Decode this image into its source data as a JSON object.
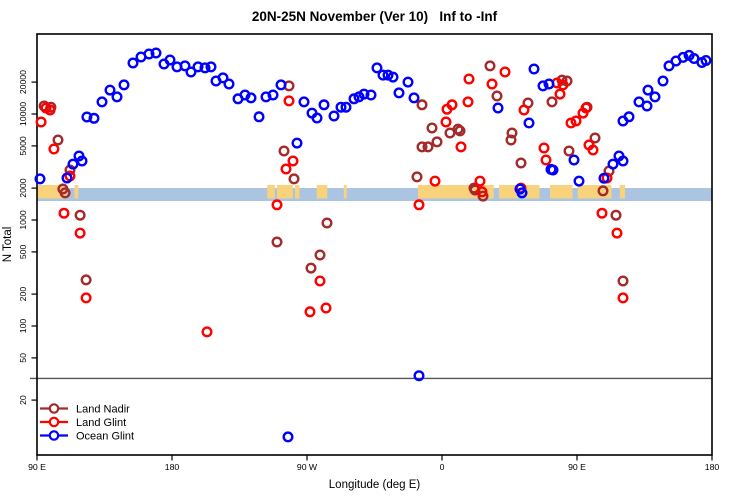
{
  "chart_data": {
    "type": "scatter",
    "title": "20N-25N November (Ver 10)   Inf to -Inf",
    "xlabel": "Longitude (deg E)",
    "ylabel": "N Total",
    "x_axis": {
      "domain_deg": [
        90,
        540
      ],
      "ticks": [
        {
          "deg": 90,
          "label": "90 E"
        },
        {
          "deg": 180,
          "label": "180"
        },
        {
          "deg": 270,
          "label": "90 W"
        },
        {
          "deg": 360,
          "label": "0"
        },
        {
          "deg": 450,
          "label": "90 E"
        },
        {
          "deg": 540,
          "label": "180"
        }
      ]
    },
    "y_axis": {
      "scale": "log",
      "tick_values": [
        20000,
        10000,
        5000,
        2000,
        1000,
        500,
        200,
        100,
        50,
        20
      ]
    },
    "reference_line_value": 32,
    "map_band": {
      "center_value": 2000,
      "ocean_color": "#ABC4E2",
      "land_color": "#F9D27C",
      "land_segments_deg": [
        [
          90,
          110
        ],
        [
          115,
          117.5
        ],
        [
          243.5,
          248.5
        ],
        [
          250,
          260.5
        ],
        [
          262,
          265
        ],
        [
          276.5,
          283.5
        ],
        [
          294.5,
          296.5
        ],
        [
          344,
          394.5
        ],
        [
          398,
          411
        ],
        [
          415,
          425
        ],
        [
          432,
          447
        ],
        [
          450.5,
          473
        ],
        [
          478.5,
          482
        ]
      ]
    },
    "legend_position": "bottom-left",
    "series": [
      {
        "name": "Land Nadir",
        "color": "#A42A2A",
        "points": [
          [
            94.7,
            11900
          ],
          [
            99.3,
            11600
          ],
          [
            104,
            5690
          ],
          [
            112,
            2960
          ],
          [
            107.3,
            1960
          ],
          [
            108.7,
            1800
          ],
          [
            118.7,
            1110
          ],
          [
            122.7,
            272
          ],
          [
            254.7,
            4480
          ],
          [
            258,
            18400
          ],
          [
            261.3,
            2440
          ],
          [
            250,
            620
          ],
          [
            278.7,
            468
          ],
          [
            272.7,
            352
          ],
          [
            283.3,
            937
          ],
          [
            343.3,
            2550
          ],
          [
            346.7,
            12200
          ],
          [
            346.7,
            4890
          ],
          [
            350.7,
            4890
          ],
          [
            353.3,
            7380
          ],
          [
            356.7,
            5450
          ],
          [
            365.3,
            6620
          ],
          [
            370.7,
            7210
          ],
          [
            372,
            6920
          ],
          [
            381.3,
            2000
          ],
          [
            382,
            1920
          ],
          [
            387.3,
            1680
          ],
          [
            392,
            28400
          ],
          [
            396.7,
            14800
          ],
          [
            406,
            5690
          ],
          [
            406.7,
            6620
          ],
          [
            412.7,
            3450
          ],
          [
            417.3,
            12700
          ],
          [
            433.3,
            13000
          ],
          [
            440,
            20900
          ],
          [
            443.3,
            20500
          ],
          [
            444.7,
            4480
          ],
          [
            456.7,
            11600
          ],
          [
            462,
            5940
          ],
          [
            467.3,
            1880
          ],
          [
            471.3,
            2900
          ],
          [
            476,
            1110
          ],
          [
            480.7,
            266
          ]
        ]
      },
      {
        "name": "Land Glint",
        "color": "#FF0000",
        "points": [
          [
            92.7,
            8410
          ],
          [
            96,
            11400
          ],
          [
            98.7,
            10900
          ],
          [
            101.3,
            4680
          ],
          [
            108,
            1160
          ],
          [
            112,
            2600
          ],
          [
            118.7,
            753
          ],
          [
            122.7,
            184
          ],
          [
            203.3,
            88
          ],
          [
            250,
            1390
          ],
          [
            256,
            3030
          ],
          [
            258,
            13300
          ],
          [
            260.7,
            3600
          ],
          [
            272,
            136
          ],
          [
            278.7,
            266
          ],
          [
            282.7,
            148
          ],
          [
            344.7,
            1390
          ],
          [
            355.3,
            2330
          ],
          [
            362.7,
            8410
          ],
          [
            363.3,
            11100
          ],
          [
            366.7,
            12200
          ],
          [
            372.7,
            4890
          ],
          [
            377.3,
            13000
          ],
          [
            378,
            21400
          ],
          [
            385.3,
            2330
          ],
          [
            386.7,
            1840
          ],
          [
            393.3,
            19200
          ],
          [
            402,
            24900
          ],
          [
            412.7,
            2000
          ],
          [
            414.7,
            10900
          ],
          [
            428,
            4780
          ],
          [
            429.3,
            3680
          ],
          [
            436.7,
            19600
          ],
          [
            438.7,
            15400
          ],
          [
            440.7,
            18800
          ],
          [
            446,
            8220
          ],
          [
            449.3,
            8590
          ],
          [
            454,
            10200
          ],
          [
            456,
            11400
          ],
          [
            458,
            5100
          ],
          [
            460.7,
            4570
          ],
          [
            466.7,
            1160
          ],
          [
            470,
            2490
          ],
          [
            476.7,
            753
          ],
          [
            480.7,
            184
          ]
        ]
      },
      {
        "name": "Ocean Glint",
        "color": "#0000FF",
        "points": [
          [
            92,
            2440
          ],
          [
            110,
            2490
          ],
          [
            114,
            3370
          ],
          [
            118,
            4020
          ],
          [
            120,
            3600
          ],
          [
            123.3,
            9370
          ],
          [
            128,
            9100
          ],
          [
            133.3,
            13000
          ],
          [
            138.7,
            16800
          ],
          [
            143.3,
            14500
          ],
          [
            148,
            18800
          ],
          [
            154,
            30300
          ],
          [
            159.3,
            34500
          ],
          [
            164.7,
            36800
          ],
          [
            169.3,
            37600
          ],
          [
            174.7,
            29600
          ],
          [
            178.7,
            32300
          ],
          [
            183.3,
            27800
          ],
          [
            188.7,
            28400
          ],
          [
            192.7,
            24900
          ],
          [
            197.3,
            27800
          ],
          [
            202,
            27200
          ],
          [
            206,
            27800
          ],
          [
            209.3,
            20500
          ],
          [
            214,
            21900
          ],
          [
            218,
            19200
          ],
          [
            224,
            13900
          ],
          [
            228.7,
            15100
          ],
          [
            232.7,
            14200
          ],
          [
            238,
            9400
          ],
          [
            242.7,
            14500
          ],
          [
            247.3,
            15100
          ],
          [
            252.7,
            18800
          ],
          [
            257.3,
            9
          ],
          [
            263.3,
            5320
          ],
          [
            268,
            13000
          ],
          [
            273.3,
            10200
          ],
          [
            276.7,
            9170
          ],
          [
            281.3,
            12200
          ],
          [
            288,
            9580
          ],
          [
            292.7,
            11600
          ],
          [
            296,
            11600
          ],
          [
            301.3,
            13900
          ],
          [
            304.7,
            14500
          ],
          [
            308,
            15400
          ],
          [
            312.7,
            15100
          ],
          [
            316.7,
            27200
          ],
          [
            320.7,
            23300
          ],
          [
            324,
            23300
          ],
          [
            327.3,
            22300
          ],
          [
            331.3,
            15800
          ],
          [
            337.3,
            20000
          ],
          [
            341.3,
            14200
          ],
          [
            344.7,
            34
          ],
          [
            397.3,
            11400
          ],
          [
            412,
            1960
          ],
          [
            413.3,
            1800
          ],
          [
            418,
            8220
          ],
          [
            421.3,
            26600
          ],
          [
            427.3,
            18400
          ],
          [
            431.3,
            19200
          ],
          [
            432.7,
            3000
          ],
          [
            434,
            2960
          ],
          [
            448,
            3680
          ],
          [
            451.3,
            2330
          ],
          [
            468,
            2480
          ],
          [
            474,
            3370
          ],
          [
            478,
            4020
          ],
          [
            480.7,
            3600
          ],
          [
            480.7,
            8590
          ],
          [
            484.7,
            9400
          ],
          [
            491.3,
            13000
          ],
          [
            496.7,
            11900
          ],
          [
            497.3,
            16800
          ],
          [
            502,
            14500
          ],
          [
            507.3,
            20500
          ],
          [
            511.3,
            28400
          ],
          [
            516,
            31600
          ],
          [
            520.7,
            34200
          ],
          [
            524.7,
            35700
          ],
          [
            528,
            33400
          ],
          [
            533.3,
            30600
          ],
          [
            536,
            32000
          ]
        ]
      }
    ]
  }
}
